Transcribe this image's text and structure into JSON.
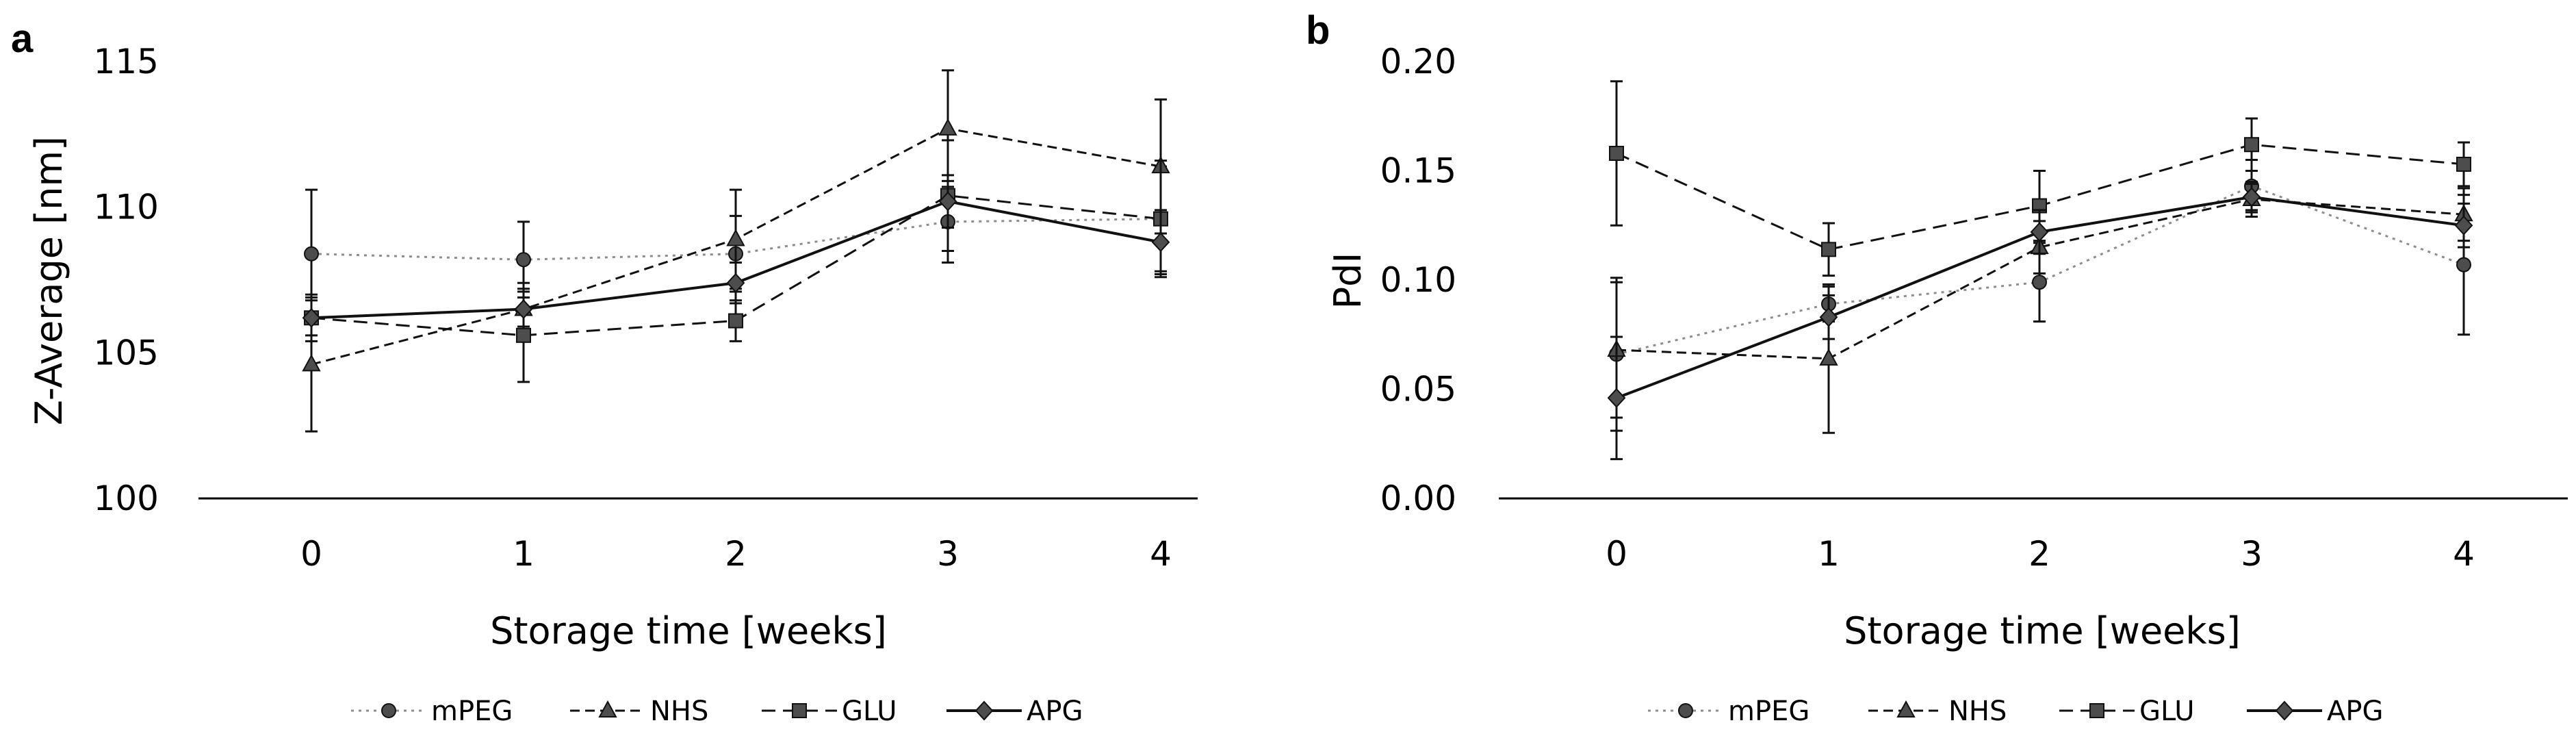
{
  "chart_data": [
    {
      "panel_label": "a",
      "type": "line",
      "xlabel": "Storage time [weeks]",
      "ylabel": "Z-Average [nm]",
      "x": [
        0,
        1,
        2,
        3,
        4
      ],
      "ylim": [
        100,
        115
      ],
      "yticks": [
        100,
        105,
        110,
        115
      ],
      "ytick_labels": [
        "100",
        "105",
        "110",
        "115"
      ],
      "series": [
        {
          "name": "mPEG",
          "marker": "circle",
          "line": "dotted",
          "values": [
            108.4,
            108.2,
            108.4,
            109.5,
            109.6
          ],
          "errors": [
            2.2,
            1.3,
            1.3,
            1.4,
            1.8
          ]
        },
        {
          "name": "NHS",
          "marker": "triangle",
          "line": "dashed-fine",
          "values": [
            104.6,
            106.5,
            108.9,
            112.7,
            111.4
          ],
          "errors": [
            2.3,
            0.9,
            1.7,
            2.0,
            2.3
          ]
        },
        {
          "name": "GLU",
          "marker": "square",
          "line": "dashed",
          "values": [
            106.2,
            105.6,
            106.1,
            110.4,
            109.6
          ],
          "errors": [
            0.8,
            1.6,
            0.7,
            1.9,
            2.0
          ]
        },
        {
          "name": "APG",
          "marker": "diamond",
          "line": "solid",
          "values": [
            106.2,
            106.5,
            107.4,
            110.2,
            108.8
          ],
          "errors": [
            0.6,
            0.6,
            0.7,
            0.9,
            1.1
          ]
        }
      ]
    },
    {
      "panel_label": "b",
      "type": "line",
      "xlabel": "Storage time [weeks]",
      "ylabel": "PdI",
      "x": [
        0,
        1,
        2,
        3,
        4
      ],
      "ylim": [
        0.0,
        0.2
      ],
      "yticks": [
        0.0,
        0.05,
        0.1,
        0.15,
        0.2
      ],
      "ytick_labels": [
        "0.00",
        "0.05",
        "0.10",
        "0.15",
        "0.20"
      ],
      "series": [
        {
          "name": "mPEG",
          "marker": "circle",
          "line": "dotted",
          "values": [
            0.066,
            0.089,
            0.099,
            0.143,
            0.107
          ],
          "errors": [
            0.035,
            0.008,
            0.018,
            0.012,
            0.032
          ]
        },
        {
          "name": "NHS",
          "marker": "triangle",
          "line": "dashed-fine",
          "values": [
            0.068,
            0.064,
            0.115,
            0.137,
            0.13
          ],
          "errors": [
            0.031,
            0.034,
            0.012,
            0.008,
            0.012
          ]
        },
        {
          "name": "GLU",
          "marker": "square",
          "line": "dashed",
          "values": [
            0.158,
            0.114,
            0.134,
            0.162,
            0.153
          ],
          "errors": [
            0.033,
            0.012,
            0.016,
            0.012,
            0.01
          ]
        },
        {
          "name": "APG",
          "marker": "diamond",
          "line": "solid",
          "values": [
            0.046,
            0.083,
            0.122,
            0.138,
            0.125
          ],
          "errors": [
            0.028,
            0.01,
            0.01,
            0.006,
            0.01
          ]
        }
      ]
    }
  ]
}
